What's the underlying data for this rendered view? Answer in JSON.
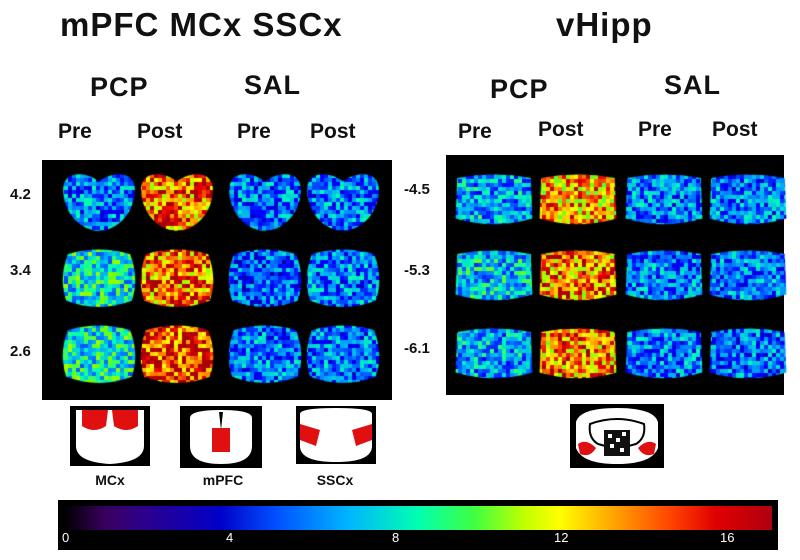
{
  "left": {
    "title": "mPFC  MCx  SSCx",
    "groups": [
      "PCP",
      "SAL"
    ],
    "columns": [
      "Pre",
      "Post",
      "Pre",
      "Post"
    ],
    "rows": [
      "4.2",
      "3.4",
      "2.6"
    ]
  },
  "right": {
    "title": "vHipp",
    "groups": [
      "PCP",
      "SAL"
    ],
    "columns": [
      "Pre",
      "Post",
      "Pre",
      "Post"
    ],
    "rows": [
      "-4.5",
      "-5.3",
      "-6.1"
    ]
  },
  "atlas": {
    "labels": [
      "MCx",
      "mPFC",
      "SSCx"
    ]
  },
  "colorbar": {
    "ticks": [
      "0",
      "4",
      "8",
      "12",
      "16"
    ],
    "range": [
      0,
      17
    ]
  },
  "colors": {
    "highlight": "#e01010",
    "panel_bg": "#000000"
  },
  "intensity": {
    "left": [
      [
        0.3,
        0.85,
        0.28,
        0.3
      ],
      [
        0.45,
        0.85,
        0.25,
        0.3
      ],
      [
        0.45,
        0.9,
        0.3,
        0.3
      ]
    ],
    "right": [
      [
        0.35,
        0.78,
        0.3,
        0.3
      ],
      [
        0.4,
        0.82,
        0.3,
        0.3
      ],
      [
        0.35,
        0.82,
        0.3,
        0.28
      ]
    ]
  }
}
